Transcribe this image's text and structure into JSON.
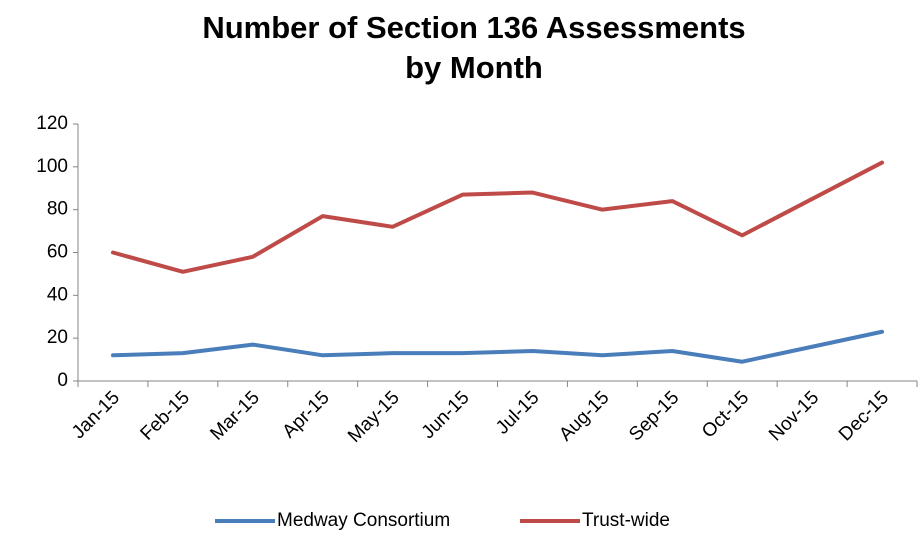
{
  "chart_data": {
    "type": "line",
    "title": [
      "Number of Section 136 Assessments",
      "by Month"
    ],
    "categories": [
      "Jan-15",
      "Feb-15",
      "Mar-15",
      "Apr-15",
      "May-15",
      "Jun-15",
      "Jul-15",
      "Aug-15",
      "Sep-15",
      "Oct-15",
      "Nov-15",
      "Dec-15"
    ],
    "series": [
      {
        "name": "Medway Consortium",
        "color": "#4a7ebb",
        "values": [
          12,
          13,
          17,
          12,
          13,
          13,
          14,
          12,
          14,
          9,
          16,
          23
        ]
      },
      {
        "name": "Trust-wide",
        "color": "#be4b48",
        "values": [
          60,
          51,
          58,
          77,
          72,
          87,
          88,
          80,
          84,
          68,
          85,
          102
        ]
      }
    ],
    "ylim": [
      0,
      120
    ],
    "yticks": [
      0,
      20,
      40,
      60,
      80,
      100,
      120
    ],
    "grid": false,
    "legend": "bottom"
  }
}
